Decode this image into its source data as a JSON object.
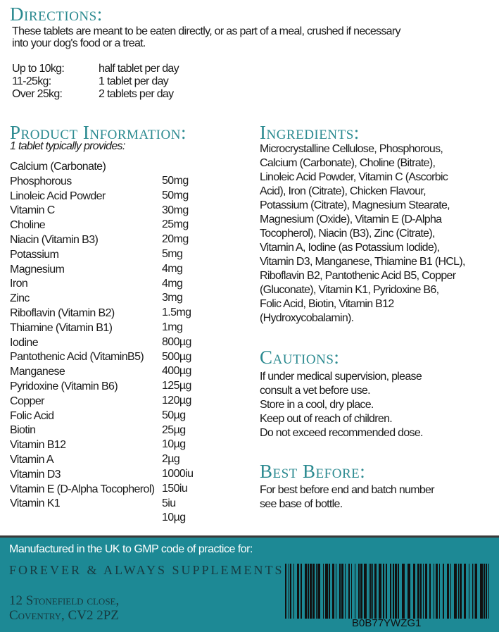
{
  "directions": {
    "heading": "Directions:",
    "text_lines": [
      "These tablets are meant to be eaten directly, or as part of a meal, crushed if necessary",
      "into your dog's food or a treat."
    ],
    "dosage": [
      {
        "weight": "Up to 10kg:",
        "amount": "half tablet per day"
      },
      {
        "weight": "11-25kg:",
        "amount": "1 tablet per day"
      },
      {
        "weight": "Over 25kg:",
        "amount": "2 tablets per day"
      }
    ]
  },
  "product_info": {
    "heading": "Product Information:",
    "subtitle": "1 tablet typically provides:",
    "rows": [
      {
        "name": "Calcium (Carbonate)",
        "value": "50mg"
      },
      {
        "name": "Phosphorous",
        "value": "50mg"
      },
      {
        "name": "Linoleic Acid Powder",
        "value": "30mg"
      },
      {
        "name": "Vitamin C",
        "value": "25mg"
      },
      {
        "name": "Choline",
        "value": "20mg"
      },
      {
        "name": "Niacin (Vitamin B3)",
        "value": "5mg"
      },
      {
        "name": "Potassium",
        "value": "4mg"
      },
      {
        "name": "Magnesium",
        "value": "4mg"
      },
      {
        "name": "Iron",
        "value": "3mg"
      },
      {
        "name": "Zinc",
        "value": "1.5mg"
      },
      {
        "name": "Riboflavin (Vitamin B2)",
        "value": "1mg"
      },
      {
        "name": "Thiamine (Vitamin B1)",
        "value": "800µg"
      },
      {
        "name": "Iodine",
        "value": "500µg"
      },
      {
        "name": "Pantothenic Acid (VitaminB5)",
        "value": "400µg"
      },
      {
        "name": "Manganese",
        "value": "125µg"
      },
      {
        "name": "Pyridoxine (Vitamin B6)",
        "value": "120µg"
      },
      {
        "name": "Copper",
        "value": "50µg"
      },
      {
        "name": "Folic Acid",
        "value": "25µg"
      },
      {
        "name": "Biotin",
        "value": "10µg"
      },
      {
        "name": "Vitamin B12",
        "value": "2µg"
      },
      {
        "name": "Vitamin A",
        "value": "1000iu"
      },
      {
        "name": "Vitamin D3",
        "value": "150iu"
      },
      {
        "name": "Vitamin E (D-Alpha Tocopherol)",
        "value": "5iu"
      },
      {
        "name": "Vitamin K1",
        "value": "10µg"
      }
    ]
  },
  "ingredients": {
    "heading": "Ingredients:",
    "lines": [
      "Microcrystalline Cellulose, Phosphorous,",
      "Calcium (Carbonate), Choline (Bitrate),",
      "Linoleic Acid Powder, Vitamin C (Ascorbic",
      "Acid), Iron (Citrate), Chicken Flavour,",
      "Potassium (Citrate), Magnesium Stearate,",
      "Magnesium (Oxide), Vitamin E (D-Alpha",
      "Tocopherol), Niacin (B3), Zinc (Citrate),",
      "Vitamin A, Iodine (as Potassium Iodide),",
      "Vitamin D3, Manganese, Thiamine B1 (HCL),",
      "Riboflavin B2, Pantothenic Acid B5, Copper",
      "(Gluconate), Vitamin K1, Pyridoxine B6,",
      "Folic Acid, Biotin, Vitamin B12",
      "(Hydroxycobalamin)."
    ]
  },
  "cautions": {
    "heading": "Cautions:",
    "lines": [
      "If under medical supervision, please",
      "consult a vet before use.",
      "Store in a cool, dry place.",
      "Keep out of reach of children.",
      "Do not exceed recommended dose."
    ]
  },
  "best_before": {
    "heading": "Best Before:",
    "lines": [
      "For best before end and batch number",
      "see base of bottle."
    ]
  },
  "footer": {
    "manufactured": "Manufactured in the UK to GMP code of practice for:",
    "brand": "FOREVER & ALWAYS SUPPLEMENTS",
    "address_lines": [
      "12 Stonefield close,",
      "Coventry, CV2 2PZ"
    ],
    "barcode_text": "B0B77YWZG1",
    "background_color": "#1d8995",
    "heading_color": "#2b8a90"
  }
}
